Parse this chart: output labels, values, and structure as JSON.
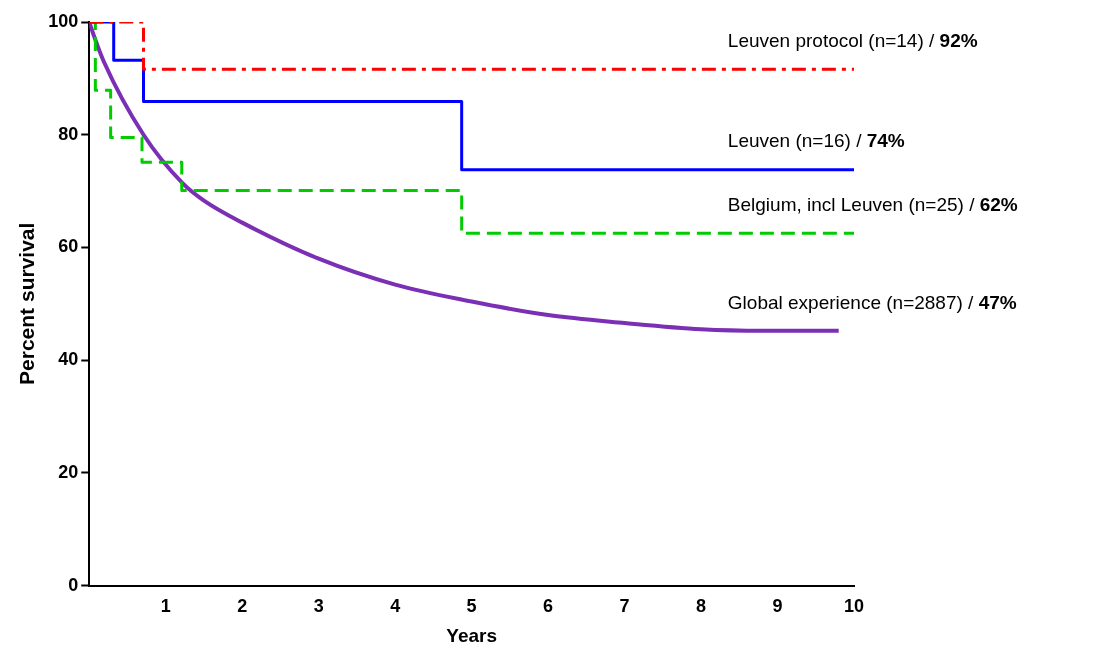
{
  "chart_data": {
    "type": "step",
    "xlabel": "Years",
    "ylabel": "Percent survival",
    "xlim": [
      0,
      10
    ],
    "ylim": [
      0,
      100
    ],
    "xticks": [
      1,
      2,
      3,
      4,
      5,
      6,
      7,
      8,
      9,
      10
    ],
    "yticks": [
      0,
      20,
      40,
      60,
      80,
      100
    ],
    "grid": false,
    "legend": false,
    "marker": "none",
    "series": [
      {
        "name": "Leuven protocol (n=14) / 92%",
        "color": "#ff0000",
        "line_style": "dashdot",
        "x": [
          0,
          0.71,
          10
        ],
        "values": [
          100,
          91.6,
          91.6
        ]
      },
      {
        "name": "Leuven (n=16) / 74%",
        "color": "#0000ff",
        "line_style": "solid",
        "x": [
          0,
          0.32,
          0.71,
          4.87,
          10
        ],
        "values": [
          100,
          93.2,
          85.9,
          73.8,
          73.8
        ]
      },
      {
        "name": "Belgium, incl Leuven (n=25) / 62%",
        "color": "#00cc00",
        "line_style": "dashed",
        "x": [
          0,
          0.08,
          0.28,
          0.69,
          1.21,
          4.87,
          10
        ],
        "values": [
          100,
          87.9,
          79.5,
          75.1,
          70.1,
          62.5,
          62.5
        ]
      },
      {
        "name": "Global experience (n=2887) / 47%",
        "type": "line",
        "color": "#7b2fb5",
        "line_style": "solid",
        "x": [
          0,
          0.05,
          0.19,
          0.71,
          1.22,
          1.5,
          2,
          3,
          4,
          5,
          6,
          7,
          8,
          9,
          9.8
        ],
        "values": [
          100,
          98,
          93,
          80,
          71.4,
          68.3,
          64.4,
          58,
          53.4,
          50.4,
          48,
          46.6,
          45.5,
          45.2,
          45.2
        ]
      }
    ]
  }
}
